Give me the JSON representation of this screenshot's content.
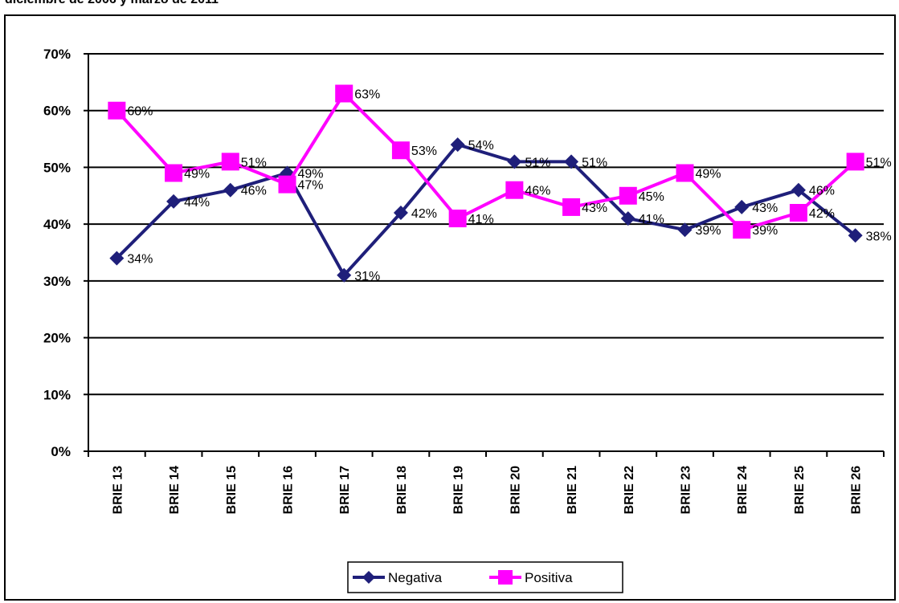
{
  "caption": "diciembre de 2006 y marzo de 2011",
  "chart_data": {
    "type": "line",
    "categories": [
      "BRIE 13",
      "BRIE 14",
      "BRIE 15",
      "BRIE 16",
      "BRIE 17",
      "BRIE 18",
      "BRIE 19",
      "BRIE 20",
      "BRIE 21",
      "BRIE 22",
      "BRIE 23",
      "BRIE 24",
      "BRIE 25",
      "BRIE 26"
    ],
    "ylim": [
      0,
      70
    ],
    "yticks": [
      "0%",
      "10%",
      "20%",
      "30%",
      "40%",
      "50%",
      "60%",
      "70%"
    ],
    "grid": true,
    "legend_position": "bottom",
    "series": [
      {
        "name": "Negativa",
        "color": "#1F1F7A",
        "marker": "diamond",
        "values": [
          34,
          44,
          46,
          49,
          31,
          42,
          54,
          51,
          51,
          41,
          39,
          43,
          46,
          38
        ],
        "labels": [
          "34%",
          "44%",
          "46%",
          "49%",
          "31%",
          "42%",
          "54%",
          "51%",
          "51%",
          "41%",
          "39%",
          "43%",
          "46%",
          "38%"
        ]
      },
      {
        "name": "Positiva",
        "color": "#FF00FF",
        "marker": "square",
        "values": [
          60,
          49,
          51,
          47,
          63,
          53,
          41,
          46,
          43,
          45,
          49,
          39,
          42,
          51
        ],
        "labels": [
          "60%",
          "49%",
          "51%",
          "47%",
          "63%",
          "53%",
          "41%",
          "46%",
          "43%",
          "45%",
          "49%",
          "39%",
          "42%",
          "51%"
        ]
      }
    ]
  }
}
